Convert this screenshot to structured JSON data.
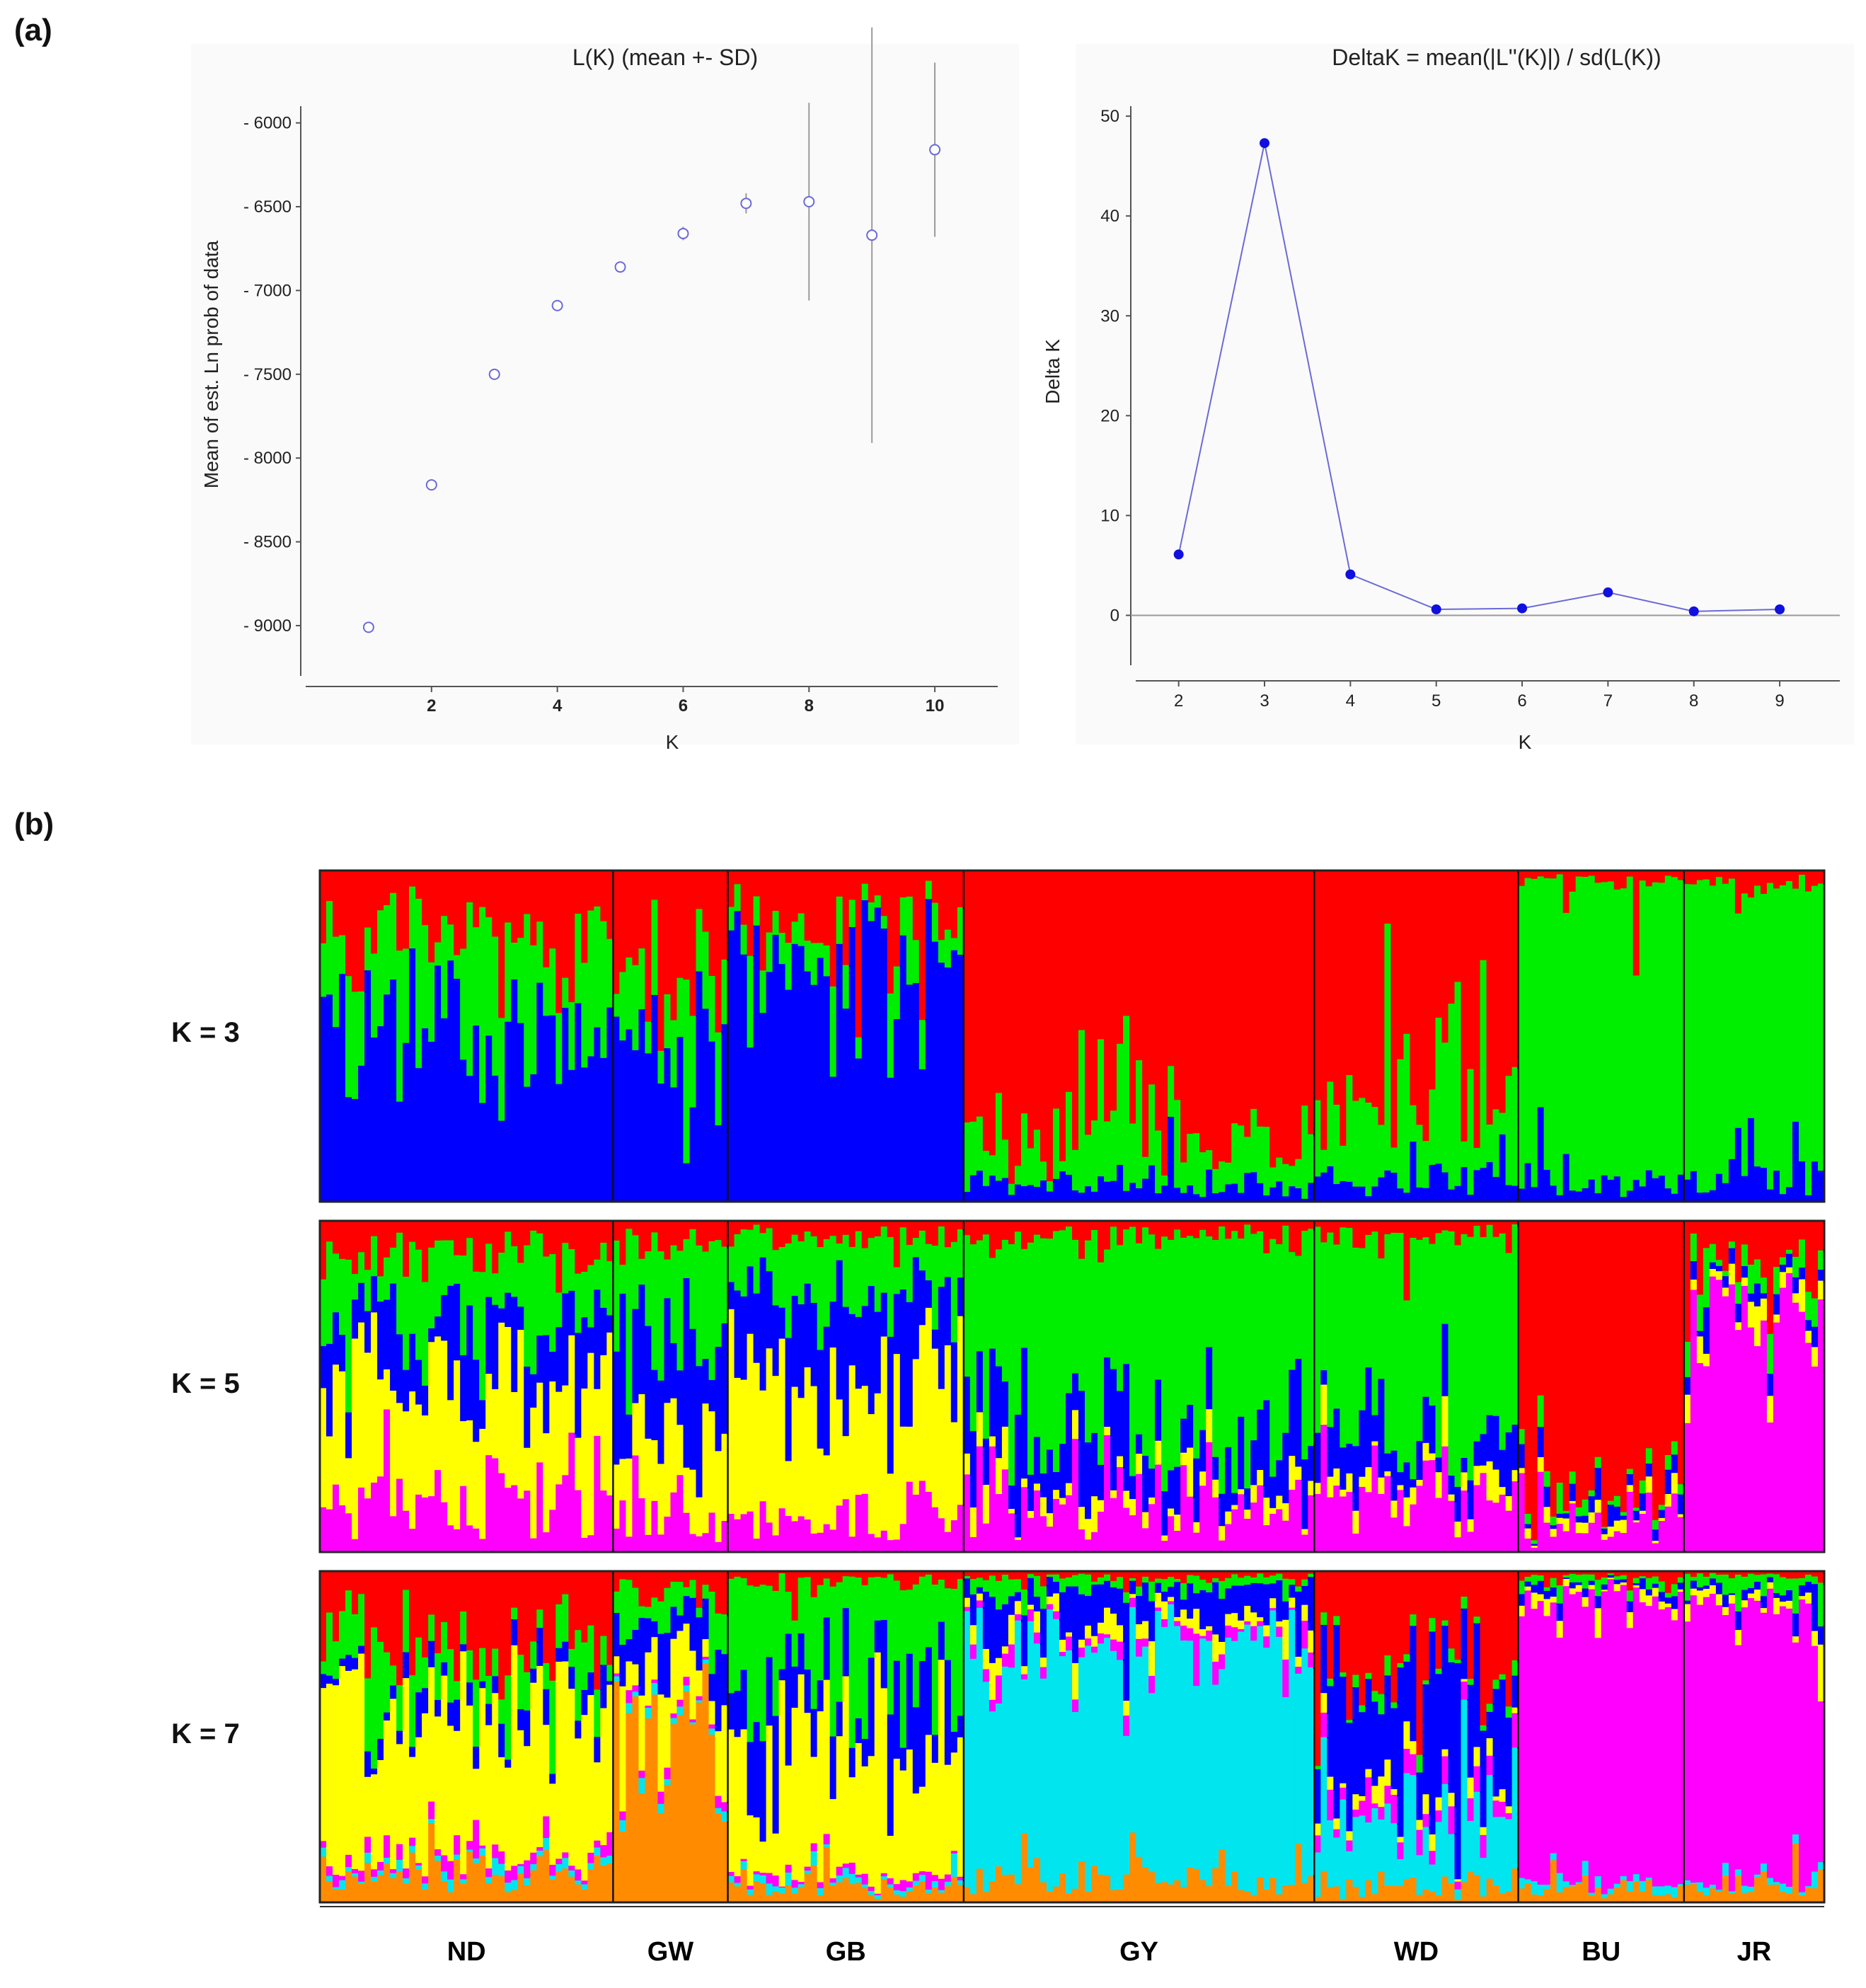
{
  "panel_a_label": "(a)",
  "panel_b_label": "(b)",
  "chart_data": [
    {
      "type": "scatter",
      "id": "lk",
      "title": "L(K) (mean +- SD)",
      "xlabel": "K",
      "ylabel": "Mean of est. Ln prob of data",
      "xlim": [
        0,
        11
      ],
      "ylim": [
        -9300,
        -5900
      ],
      "xticks": [
        2,
        4,
        6,
        8,
        10
      ],
      "yticks": [
        -6000,
        -6500,
        -7000,
        -7500,
        -8000,
        -8500,
        -9000
      ],
      "ytick_labels": [
        "- 6000",
        "- 6500",
        "- 7000",
        "- 7500",
        "- 8000",
        "- 8500",
        "- 9000"
      ],
      "x": [
        1,
        2,
        3,
        4,
        5,
        6,
        7,
        8,
        9,
        10
      ],
      "y": [
        -9010,
        -8160,
        -7500,
        -7090,
        -6860,
        -6660,
        -6480,
        -6470,
        -6670,
        -6160
      ],
      "sd": [
        0,
        10,
        10,
        20,
        20,
        40,
        60,
        590,
        1240,
        520
      ]
    },
    {
      "type": "line",
      "id": "dk",
      "title": "DeltaK = mean(|L''(K)|) / sd(L(K))",
      "xlabel": "K",
      "ylabel": "Delta K",
      "xlim": [
        1.5,
        9.7
      ],
      "ylim": [
        -5,
        51
      ],
      "xticks": [
        2,
        3,
        4,
        5,
        6,
        7,
        8,
        9
      ],
      "yticks": [
        0,
        10,
        20,
        30,
        40,
        50
      ],
      "x": [
        2,
        3,
        4,
        5,
        6,
        7,
        8,
        9
      ],
      "y": [
        6.1,
        47.3,
        4.1,
        0.6,
        0.7,
        2.3,
        0.4,
        0.6
      ]
    },
    {
      "type": "bar",
      "id": "structure",
      "description": "Stacked admixture barplot, one bar per individual, grouped by population",
      "populations": [
        {
          "name": "ND",
          "n": 46
        },
        {
          "name": "GW",
          "n": 18
        },
        {
          "name": "GB",
          "n": 37
        },
        {
          "name": "GY",
          "n": 55
        },
        {
          "name": "WD",
          "n": 32
        },
        {
          "name": "BU",
          "n": 26
        },
        {
          "name": "JR",
          "n": 22
        }
      ],
      "rows": [
        {
          "label": "K = 3",
          "k": 3,
          "colors": [
            "#0000ff",
            "#00ee00",
            "#ff0000"
          ],
          "pop_profiles": {
            "ND": [
              0.55,
              0.25,
              0.2
            ],
            "GW": [
              0.45,
              0.2,
              0.35
            ],
            "GB": [
              0.7,
              0.12,
              0.18
            ],
            "GY": [
              0.05,
              0.15,
              0.8
            ],
            "WD": [
              0.08,
              0.22,
              0.7
            ],
            "BU": [
              0.06,
              0.9,
              0.04
            ],
            "JR": [
              0.08,
              0.88,
              0.04
            ]
          }
        },
        {
          "label": "K = 5",
          "k": 5,
          "colors": [
            "#ff00ff",
            "#ffff00",
            "#0000ff",
            "#00ee00",
            "#ff0000"
          ],
          "pop_profiles": {
            "ND": [
              0.15,
              0.35,
              0.15,
              0.25,
              0.1
            ],
            "GW": [
              0.12,
              0.25,
              0.3,
              0.25,
              0.08
            ],
            "GB": [
              0.1,
              0.4,
              0.25,
              0.2,
              0.05
            ],
            "GY": [
              0.15,
              0.05,
              0.15,
              0.6,
              0.05
            ],
            "WD": [
              0.18,
              0.05,
              0.12,
              0.6,
              0.05
            ],
            "BU": [
              0.1,
              0.03,
              0.04,
              0.03,
              0.8
            ],
            "JR": [
              0.72,
              0.04,
              0.04,
              0.05,
              0.15
            ]
          }
        },
        {
          "label": "K = 7",
          "k": 7,
          "colors": [
            "#ff8c00",
            "#00e5ee",
            "#ff00ff",
            "#ffff00",
            "#0000ff",
            "#00ee00",
            "#ff0000"
          ],
          "pop_profiles": {
            "ND": [
              0.1,
              0.02,
              0.03,
              0.45,
              0.05,
              0.15,
              0.2
            ],
            "GW": [
              0.55,
              0.02,
              0.02,
              0.15,
              0.12,
              0.08,
              0.06
            ],
            "GB": [
              0.05,
              0.02,
              0.02,
              0.35,
              0.2,
              0.33,
              0.03
            ],
            "GY": [
              0.08,
              0.7,
              0.03,
              0.04,
              0.1,
              0.03,
              0.02
            ],
            "WD": [
              0.05,
              0.2,
              0.05,
              0.04,
              0.3,
              0.03,
              0.33
            ],
            "BU": [
              0.05,
              0.02,
              0.85,
              0.02,
              0.02,
              0.02,
              0.02
            ],
            "JR": [
              0.05,
              0.02,
              0.8,
              0.03,
              0.03,
              0.05,
              0.02
            ]
          }
        }
      ]
    }
  ]
}
